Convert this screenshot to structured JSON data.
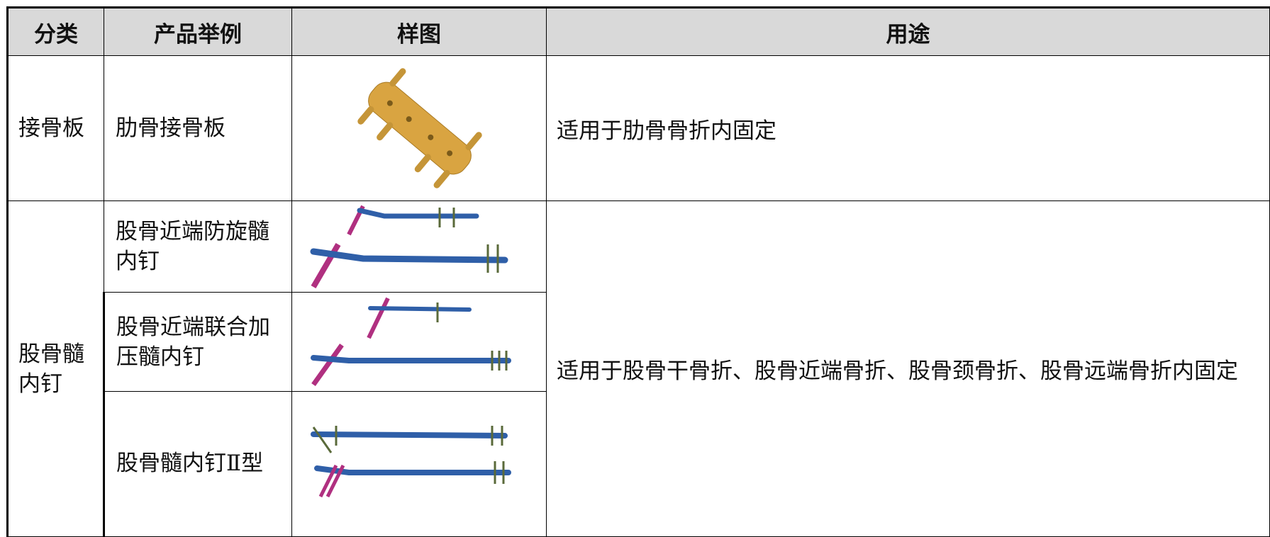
{
  "table": {
    "header": [
      "分类",
      "产品举例",
      "样图",
      "用途"
    ],
    "rows": [
      {
        "category": "接骨板",
        "products": [
          "肋骨接骨板"
        ],
        "uses": "适用于肋骨骨折内固定"
      },
      {
        "category": "股骨髓内钉",
        "products": [
          "股骨近端防旋髓内钉",
          "股骨近端联合加压髓内钉",
          "股骨髓内钉Ⅱ型"
        ],
        "uses": "适用于股骨干骨折、股骨近端骨折、股骨颈骨折、股骨远端骨折内固定"
      }
    ]
  }
}
